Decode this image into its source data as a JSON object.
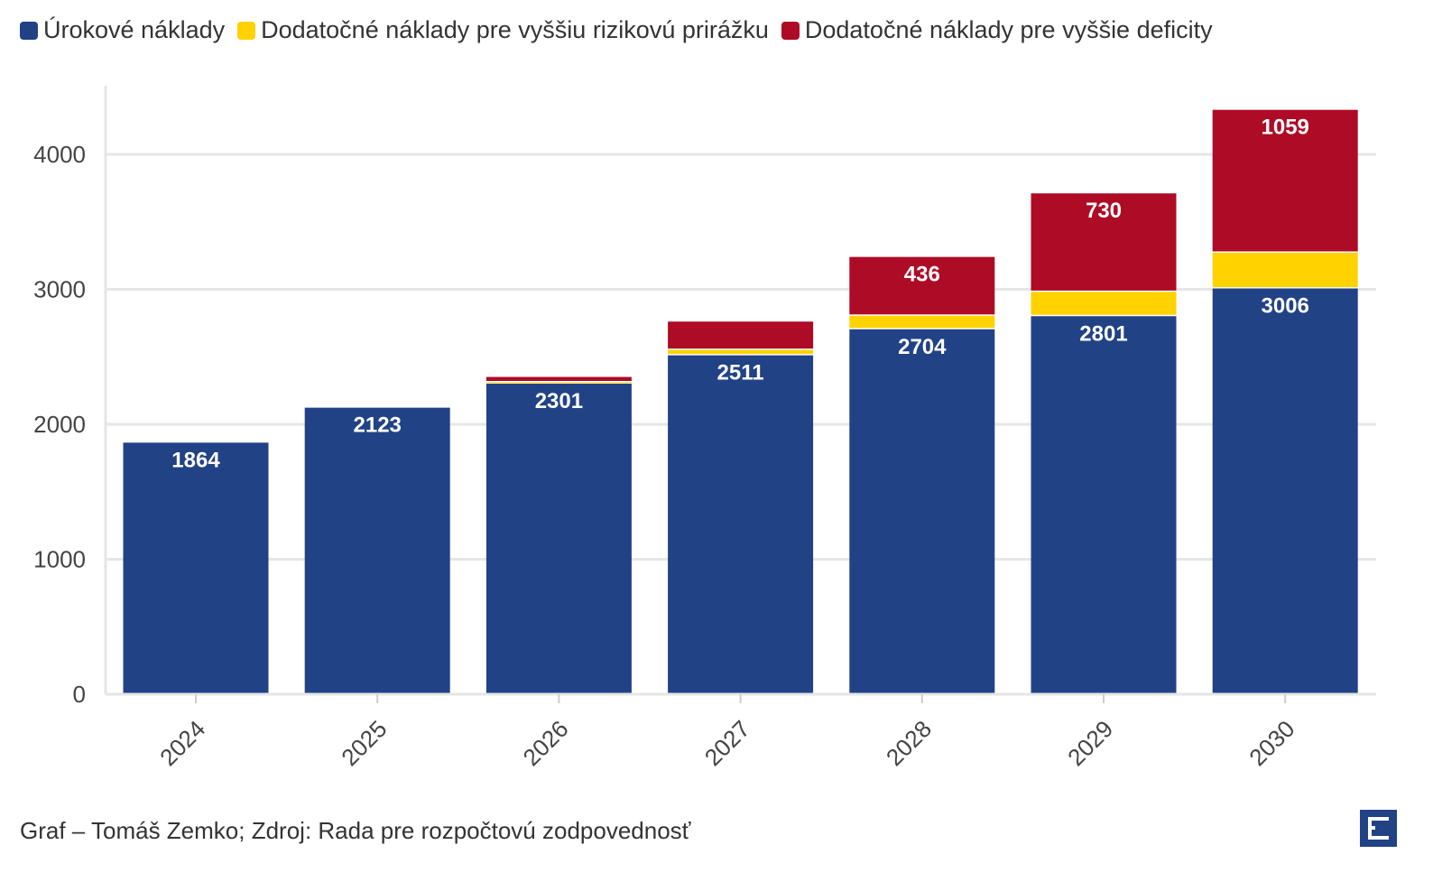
{
  "chart_data": {
    "type": "bar",
    "stacked": true,
    "categories": [
      "2024",
      "2025",
      "2026",
      "2027",
      "2028",
      "2029",
      "2030"
    ],
    "series": [
      {
        "name": "Úrokové náklady",
        "color": "#224286",
        "values": [
          1864,
          2123,
          2301,
          2511,
          2704,
          2801,
          3006
        ],
        "labels": [
          "1864",
          "2123",
          "2301",
          "2511",
          "2704",
          "2801",
          "3006"
        ]
      },
      {
        "name": "Dodatočné náklady pre vyššiu rizikovú prirážku",
        "color": "#FFD200",
        "values": [
          0,
          0,
          10,
          40,
          100,
          180,
          265
        ],
        "labels": [
          "",
          "",
          "",
          "",
          "",
          "",
          ""
        ]
      },
      {
        "name": "Dodatočné náklady pre vyššie deficity",
        "color": "#AE0B26",
        "values": [
          0,
          0,
          40,
          210,
          436,
          730,
          1059
        ],
        "labels": [
          "",
          "",
          "",
          "",
          "436",
          "730",
          "1059"
        ]
      }
    ],
    "yticks": [
      "0",
      "1000",
      "2000",
      "3000",
      "4000"
    ],
    "ylim": [
      0,
      4500
    ],
    "grid": true,
    "legend": "top-left",
    "xlabel": "",
    "ylabel": ""
  },
  "source": "Graf – Tomáš Zemko; Zdroj: Rada pre rozpočtovú zodpovednosť"
}
